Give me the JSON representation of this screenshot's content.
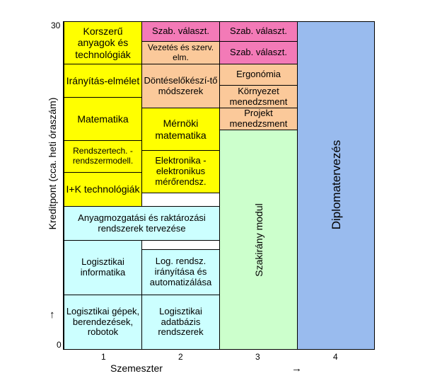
{
  "axes": {
    "y_label": "Kreditpont (cca. heti óraszám)",
    "y_top": "30",
    "y_bottom": "0",
    "y_arrow": "↑",
    "x_label": "Szemeszter",
    "x_arrow": "→",
    "x_ticks": [
      "1",
      "2",
      "3",
      "4"
    ]
  },
  "colors": {
    "yellow": "#ffff00",
    "pink": "#f37ab7",
    "peach": "#fbc99a",
    "cyan": "#ccffff",
    "green": "#ccffcc",
    "blue": "#99bbee"
  },
  "col1": {
    "korszeru": "Korszerű anyagok és technológiák",
    "iranyitas": "Irányítás-elmélet",
    "matematika": "Matematika",
    "rendszertech": "Rendszertech. -rendszermodell.",
    "ik": "I+K technológiák",
    "logisztikai_informatika": "Logisztikai informatika",
    "logisztikai_gepek": "Logisztikai gépek, berendezések, robotok"
  },
  "col2": {
    "szab1": "Szab. választ.",
    "vezetes": "Vezetés és szerv. elm.",
    "dontes": "Döntéselőkészí-tő módszerek",
    "mernoki": "Mérnöki matematika",
    "elektronika": "Elektronika - elektronikus mérőrendsz.",
    "log_rendsz": "Log. rendsz. irányítása és automatizálása",
    "adatbazis": "Logisztikai adatbázis rendszerek"
  },
  "span12": {
    "anyagmozgatasi": "Anyagmozgatási és raktározási rendszerek tervezése"
  },
  "col3": {
    "szab1": "Szab. választ.",
    "szab2": "Szab. választ.",
    "ergonomia": "Ergonómia",
    "kornyezet": "Környezet menedzsment",
    "projekt": "Projekt menedzsment",
    "szakirany": "Szakirány modul"
  },
  "col4": {
    "diploma": "Diplomatervezés"
  }
}
